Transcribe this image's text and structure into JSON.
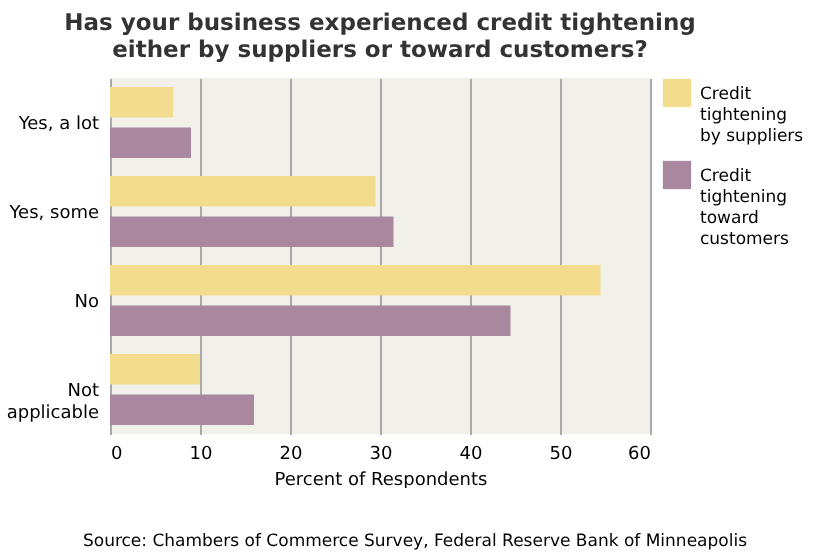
{
  "chart_data": {
    "type": "bar",
    "orientation": "horizontal",
    "title": "Has your business experienced credit tightening either by suppliers or toward customers?",
    "xlabel": "Percent of Respondents",
    "annotations": [
      "Source: Chambers of Commerce Survey, Federal Reserve Bank of Minneapolis"
    ],
    "categories": [
      "Yes, a lot",
      "Yes, some",
      "No",
      "Not applicable"
    ],
    "series": [
      {
        "name": "Credit tightening by suppliers",
        "color": "#f4dc8f",
        "values": [
          7,
          29.5,
          54.5,
          10
        ]
      },
      {
        "name": "Credit tightening toward customers",
        "color": "#a8879f",
        "values": [
          9,
          31.5,
          44.5,
          16
        ]
      }
    ],
    "xlim": [
      0,
      60
    ],
    "xticks": [
      0,
      10,
      20,
      30,
      40,
      50,
      60
    ],
    "grid": "x",
    "legend": "right"
  }
}
